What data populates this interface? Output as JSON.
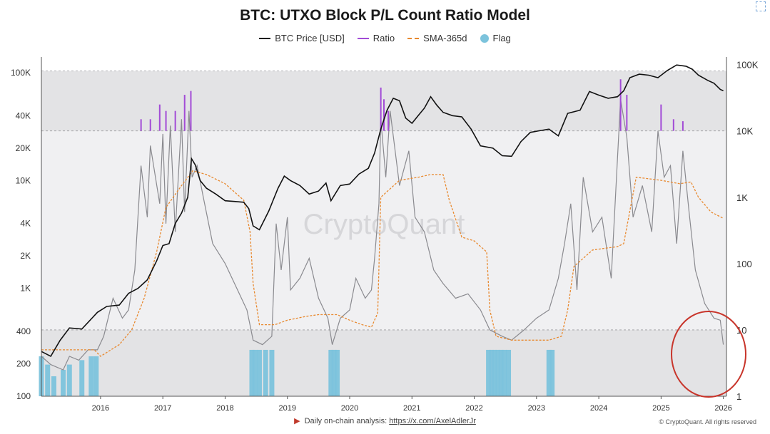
{
  "title": "BTC: UTXO Block P/L Count Ratio Model",
  "legend": [
    {
      "label": "BTC Price [USD]",
      "color": "#111111",
      "style": "line"
    },
    {
      "label": "Ratio",
      "color": "#a24bd6",
      "style": "line"
    },
    {
      "label": "SMA-365d",
      "color": "#e8892f",
      "style": "dashed"
    },
    {
      "label": "Flag",
      "color": "#7cc3dc",
      "style": "dot"
    }
  ],
  "watermark": "CryptoQuant",
  "footer": {
    "text": "Daily on-chain analysis: ",
    "link": "https://x.com/AxelAdlerJr",
    "copyright": "© CryptoQuant. All rights reserved"
  },
  "chart_data": {
    "type": "line",
    "x_ticks": [
      "2016",
      "2017",
      "2018",
      "2019",
      "2020",
      "2021",
      "2022",
      "2023",
      "2024",
      "2025",
      "2026"
    ],
    "xlim": [
      2015.55,
      2026.55
    ],
    "left_axis": {
      "scale": "log",
      "ylim": [
        100,
        140000
      ],
      "ticks": [
        "100K",
        "40K",
        "20K",
        "10K",
        "4K",
        "2K",
        "1K",
        "400",
        "200",
        "100"
      ]
    },
    "right_axis": {
      "scale": "log",
      "ylim": [
        1,
        130000
      ],
      "ticks": [
        "100K",
        "10K",
        "1K",
        "100",
        "10",
        "1"
      ]
    },
    "bands": [
      {
        "axis": "right",
        "from": 10000,
        "to": 80000,
        "color": "#e3e3e5"
      },
      {
        "axis": "right",
        "from": 10,
        "to": 10000,
        "color": "#f0f0f2"
      },
      {
        "axis": "right",
        "from": 1,
        "to": 10,
        "color": "#e3e3e5"
      }
    ],
    "series": [
      {
        "name": "BTC Price [USD]",
        "axis": "left",
        "color": "#111111",
        "x": [
          2015.55,
          2015.7,
          2015.85,
          2016.0,
          2016.2,
          2016.45,
          2016.6,
          2016.8,
          2016.95,
          2017.1,
          2017.25,
          2017.4,
          2017.5,
          2017.6,
          2017.7,
          2017.8,
          2017.9,
          2017.96,
          2018.02,
          2018.1,
          2018.2,
          2018.35,
          2018.5,
          2018.65,
          2018.8,
          2018.88,
          2018.95,
          2019.05,
          2019.2,
          2019.35,
          2019.45,
          2019.55,
          2019.7,
          2019.85,
          2020.0,
          2020.12,
          2020.2,
          2020.35,
          2020.5,
          2020.65,
          2020.8,
          2020.9,
          2021.0,
          2021.1,
          2021.2,
          2021.3,
          2021.4,
          2021.5,
          2021.6,
          2021.7,
          2021.8,
          2021.9,
          2022.0,
          2022.15,
          2022.3,
          2022.45,
          2022.6,
          2022.8,
          2022.95,
          2023.1,
          2023.25,
          2023.4,
          2023.55,
          2023.7,
          2023.85,
          2024.0,
          2024.2,
          2024.35,
          2024.5,
          2024.65,
          2024.8,
          2024.9,
          2025.0,
          2025.15,
          2025.3,
          2025.45,
          2025.6,
          2025.75,
          2025.9,
          2026.0,
          2026.1,
          2026.25,
          2026.35,
          2026.45,
          2026.5
        ],
        "y": [
          260,
          235,
          330,
          430,
          420,
          600,
          680,
          700,
          900,
          1000,
          1200,
          1800,
          2500,
          2600,
          4000,
          5000,
          7000,
          16000,
          14000,
          10000,
          8500,
          7500,
          6500,
          6400,
          6300,
          5500,
          3800,
          3500,
          5200,
          8500,
          11000,
          10000,
          9000,
          7500,
          8000,
          9500,
          6500,
          9000,
          9300,
          11500,
          13000,
          18000,
          30000,
          45000,
          58000,
          55000,
          38000,
          34000,
          40000,
          47000,
          60000,
          50000,
          43000,
          40000,
          39000,
          30000,
          21000,
          20000,
          17000,
          16800,
          23000,
          28000,
          29000,
          30000,
          26000,
          42000,
          45000,
          67000,
          62000,
          58000,
          60000,
          68000,
          90000,
          97000,
          95000,
          90000,
          105000,
          118000,
          115000,
          108000,
          95000,
          85000,
          80000,
          70000,
          68000
        ]
      },
      {
        "name": "Ratio",
        "axis": "right",
        "color": "#a24bd6",
        "x": [
          2017.15,
          2017.3,
          2017.45,
          2017.55,
          2017.7,
          2017.85,
          2017.95,
          2021.0,
          2021.05,
          2021.12,
          2024.85,
          2024.95,
          2025.5,
          2025.7,
          2025.85
        ],
        "y": [
          15000,
          15000,
          25000,
          20000,
          20000,
          35000,
          40000,
          45000,
          30000,
          20000,
          60000,
          35000,
          25000,
          15000,
          14000
        ]
      },
      {
        "name": "SMA-365d",
        "axis": "right",
        "color": "#e8892f",
        "x": [
          2015.55,
          2016.0,
          2016.4,
          2016.5,
          2016.8,
          2017.0,
          2017.2,
          2017.4,
          2017.55,
          2017.8,
          2017.98,
          2018.2,
          2018.5,
          2018.8,
          2018.9,
          2018.95,
          2019.05,
          2019.3,
          2019.5,
          2019.8,
          2020.0,
          2020.3,
          2020.5,
          2020.7,
          2020.85,
          2020.95,
          2021.0,
          2021.3,
          2021.6,
          2021.8,
          2022.0,
          2022.1,
          2022.3,
          2022.5,
          2022.7,
          2022.75,
          2022.85,
          2023.1,
          2023.4,
          2023.7,
          2023.9,
          2024.0,
          2024.1,
          2024.4,
          2024.6,
          2024.8,
          2024.9,
          2025.1,
          2025.5,
          2025.8,
          2025.98,
          2026.1,
          2026.3,
          2026.5
        ],
        "y": [
          5,
          5,
          5,
          4,
          6,
          10,
          30,
          150,
          700,
          1500,
          2500,
          2200,
          1600,
          900,
          300,
          50,
          12,
          12,
          14,
          16,
          17,
          17,
          14,
          12,
          11,
          18,
          1000,
          1800,
          2000,
          2200,
          2200,
          900,
          250,
          220,
          150,
          20,
          8,
          7,
          7,
          7,
          8,
          20,
          90,
          160,
          170,
          180,
          200,
          2000,
          1800,
          1600,
          1700,
          1000,
          600,
          480
        ]
      },
      {
        "name": "Flag",
        "axis": "right",
        "color": "#7cc3dc",
        "x": [
          2015.55,
          2015.65,
          2015.75,
          2015.9,
          2016.0,
          2016.2,
          2016.35,
          2016.43,
          2018.93,
          2018.98,
          2019.05,
          2019.15,
          2019.25,
          2020.2,
          2020.25,
          2020.3,
          2022.73,
          2022.78,
          2022.83,
          2022.88,
          2022.93,
          2022.98,
          2023.05,
          2023.7,
          2023.75
        ],
        "y": [
          4,
          3,
          2,
          2.5,
          3,
          3.5,
          4,
          4,
          5,
          5,
          5,
          5,
          5,
          5,
          5,
          5,
          5,
          5,
          5,
          5,
          5,
          5,
          5,
          5,
          5
        ]
      }
    ],
    "ratio_raw": {
      "name": "Ratio (raw)",
      "axis": "right",
      "color": "#8a8a8f",
      "x": [
        2015.55,
        2015.7,
        2015.9,
        2016.0,
        2016.15,
        2016.3,
        2016.45,
        2016.55,
        2016.7,
        2016.85,
        2016.95,
        2017.05,
        2017.15,
        2017.25,
        2017.3,
        2017.45,
        2017.5,
        2017.55,
        2017.62,
        2017.7,
        2017.8,
        2017.85,
        2017.92,
        2017.97,
        2018.05,
        2018.15,
        2018.3,
        2018.5,
        2018.7,
        2018.85,
        2018.95,
        2019.1,
        2019.25,
        2019.32,
        2019.4,
        2019.5,
        2019.55,
        2019.7,
        2019.85,
        2020.0,
        2020.15,
        2020.22,
        2020.35,
        2020.5,
        2020.6,
        2020.75,
        2020.85,
        2020.9,
        2020.97,
        2021.0,
        2021.08,
        2021.15,
        2021.3,
        2021.45,
        2021.55,
        2021.7,
        2021.85,
        2022.0,
        2022.2,
        2022.4,
        2022.6,
        2022.75,
        2022.95,
        2023.1,
        2023.3,
        2023.5,
        2023.7,
        2023.85,
        2023.95,
        2024.05,
        2024.15,
        2024.25,
        2024.4,
        2024.55,
        2024.7,
        2024.85,
        2024.95,
        2025.05,
        2025.2,
        2025.35,
        2025.45,
        2025.55,
        2025.65,
        2025.75,
        2025.85,
        2025.95,
        2026.05,
        2026.2,
        2026.35,
        2026.45,
        2026.5
      ],
      "y": [
        4,
        3,
        2.5,
        4,
        3.5,
        5,
        5,
        8,
        30,
        15,
        20,
        80,
        3000,
        500,
        6000,
        800,
        9000,
        400,
        12000,
        300,
        15000,
        600,
        20000,
        2000,
        3000,
        1000,
        200,
        100,
        40,
        20,
        7,
        6,
        8,
        400,
        80,
        500,
        40,
        60,
        120,
        30,
        15,
        6,
        15,
        20,
        60,
        30,
        40,
        120,
        800,
        15000,
        2000,
        20000,
        1500,
        5000,
        500,
        300,
        80,
        50,
        30,
        35,
        20,
        10,
        8,
        7,
        10,
        15,
        20,
        60,
        200,
        800,
        40,
        2000,
        300,
        500,
        60,
        30000,
        8000,
        500,
        1500,
        300,
        10000,
        2000,
        3000,
        200,
        5000,
        600,
        80,
        25,
        15,
        14,
        6
      ]
    }
  }
}
